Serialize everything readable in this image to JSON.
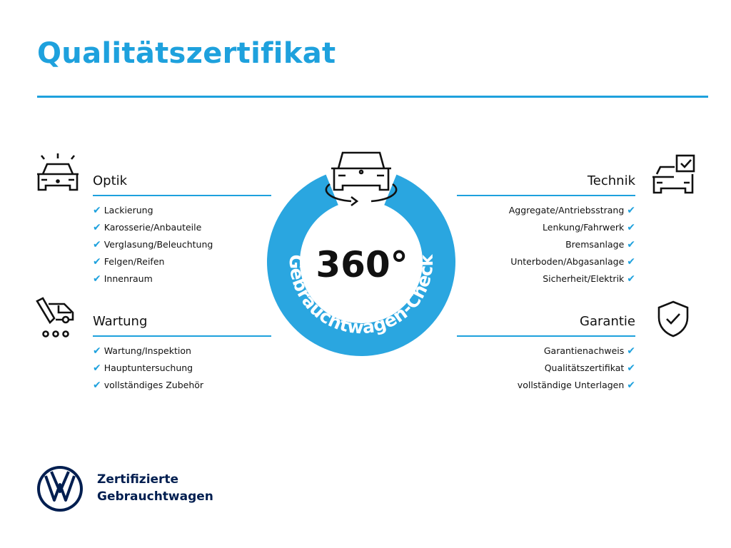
{
  "title": "Qualitätszertifikat",
  "colors": {
    "accent": "#1ea1dd",
    "ring": "#2aa6e0",
    "brand": "#001e50"
  },
  "center": {
    "degree": "360°",
    "ring_text": "Gebrauchtwagen-Check",
    "icon": "car-rotate-icon"
  },
  "sections": {
    "optik": {
      "heading": "Optik",
      "icon": "car-lights-icon",
      "items": [
        "Lackierung",
        "Karosserie/Anbauteile",
        "Verglasung/Beleuchtung",
        "Felgen/Reifen",
        "Innenraum"
      ]
    },
    "wartung": {
      "heading": "Wartung",
      "icon": "service-van-icon",
      "items": [
        "Wartung/Inspektion",
        "Hauptuntersuchung",
        "vollständiges Zubehör"
      ]
    },
    "technik": {
      "heading": "Technik",
      "icon": "car-checkbox-icon",
      "items": [
        "Aggregate/Antriebsstrang",
        "Lenkung/Fahrwerk",
        "Bremsanlage",
        "Unterboden/Abgasanlage",
        "Sicherheit/Elektrik"
      ]
    },
    "garantie": {
      "heading": "Garantie",
      "icon": "shield-check-icon",
      "items": [
        "Garantienachweis",
        "Qualitätszertifikat",
        "vollständige Unterlagen"
      ]
    }
  },
  "check_glyph": "✔",
  "footer": {
    "line1": "Zertifizierte",
    "line2": "Gebrauchtwagen"
  }
}
